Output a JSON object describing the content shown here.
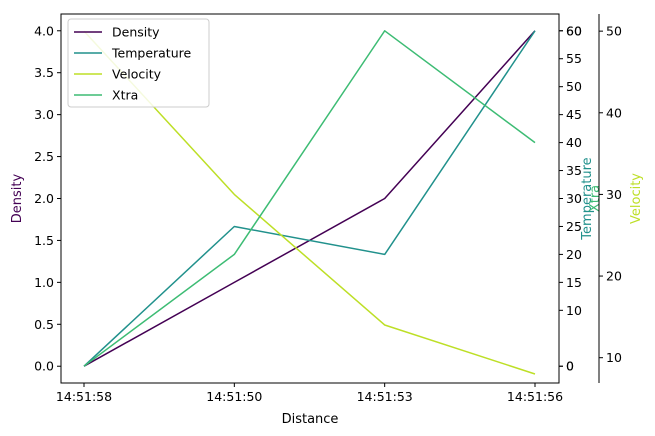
{
  "chart_data": {
    "type": "line",
    "categories": [
      "14:51:58",
      "14:51:50",
      "14:51:53",
      "14:51:56"
    ],
    "xlabel": "Distance",
    "series": [
      {
        "name": "Density",
        "axis": "density",
        "color": "#440154",
        "values": [
          0,
          1,
          2,
          4
        ]
      },
      {
        "name": "Temperature",
        "axis": "temperature",
        "color": "#21918c",
        "values": [
          0,
          25,
          20,
          60
        ]
      },
      {
        "name": "Velocity",
        "axis": "velocity",
        "color": "#bddf26",
        "values": [
          50,
          30,
          14,
          8
        ]
      },
      {
        "name": "Xtra",
        "axis": "xtra",
        "color": "#3dbc74",
        "values": [
          0,
          20,
          60,
          40
        ]
      }
    ],
    "axes": {
      "density": {
        "label": "Density",
        "label_color": "#440154",
        "ylim": [
          -0.2,
          4.2
        ],
        "ticks": [
          0.0,
          0.5,
          1.0,
          1.5,
          2.0,
          2.5,
          3.0,
          3.5,
          4.0
        ],
        "tick_labels": [
          "0.0",
          "0.5",
          "1.0",
          "1.5",
          "2.0",
          "2.5",
          "3.0",
          "3.5",
          "4.0"
        ]
      },
      "temperature": {
        "label": "Temperature",
        "label_color": "#21918c",
        "ylim": [
          -3,
          63
        ],
        "ticks": [
          0,
          10,
          20,
          30,
          40,
          50,
          60
        ],
        "tick_labels": [
          "0",
          "10",
          "20",
          "30",
          "40",
          "50",
          "60"
        ]
      },
      "xtra": {
        "label": "Xtra",
        "label_color": "#3dbc74",
        "ylim": [
          -3,
          63
        ],
        "ticks": [
          0,
          15,
          25,
          35,
          45,
          55,
          60
        ],
        "tick_labels": [
          "0",
          "15",
          "25",
          "35",
          "45",
          "55",
          "60"
        ]
      },
      "velocity": {
        "label": "Velocity",
        "label_color": "#bddf26",
        "ylim": [
          6.9,
          52.1
        ],
        "ticks": [
          10,
          20,
          30,
          40,
          50
        ],
        "tick_labels": [
          "10",
          "20",
          "30",
          "40",
          "50"
        ]
      }
    },
    "legend_placement": "top-left",
    "grid": false
  }
}
